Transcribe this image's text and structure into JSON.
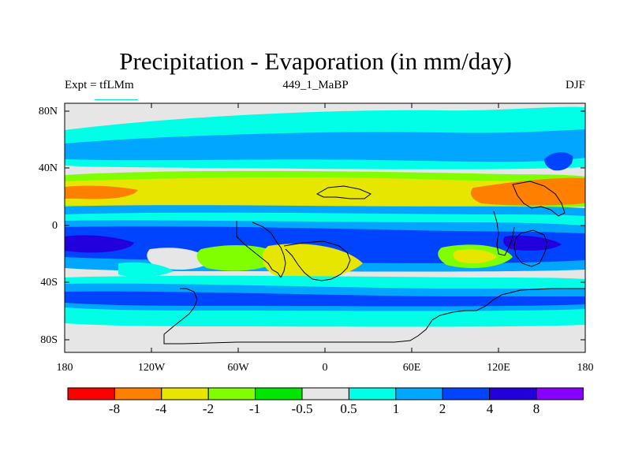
{
  "title": "Precipitation - Evaporation (in mm/day)",
  "subtitle_left": "Expt = tfLMm",
  "subtitle_center": "449_1_MaBP",
  "subtitle_right": "DJF",
  "lat_ticks": [
    "80N",
    "40N",
    "0",
    "40S",
    "80S"
  ],
  "lon_ticks": [
    "180",
    "120W",
    "60W",
    "0",
    "60E",
    "120E",
    "180"
  ],
  "colorbar": {
    "labels": [
      "-8",
      "-4",
      "-2",
      "-1",
      "-0.5",
      "0.5",
      "1",
      "2",
      "4",
      "8"
    ],
    "colors": [
      "#ff0000",
      "#ff8000",
      "#e6e600",
      "#80ff00",
      "#00e600",
      "#e6e6e6",
      "#00ffe6",
      "#00a6ff",
      "#0044ff",
      "#2200dd",
      "#8800ff"
    ]
  },
  "map": {
    "background_color": "#e6e6e6",
    "coastline_color": "#000000"
  }
}
